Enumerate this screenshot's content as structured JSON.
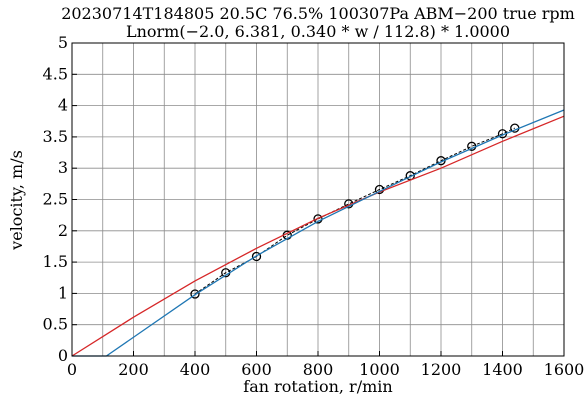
{
  "chart_data": {
    "type": "line",
    "title": "20230714T184805 20.5C 76.5% 100307Pa ABM−200 true rpm",
    "subtitle": "Lnorm(−2.0, 6.381, 0.340 * w / 112.8) * 1.0000",
    "xlabel": "fan rotation, r/min",
    "ylabel": "velocity, m/s",
    "xlim": [
      0,
      1600
    ],
    "ylim": [
      0,
      5
    ],
    "x_ticks": [
      0,
      200,
      400,
      600,
      800,
      1000,
      1200,
      1400,
      1600
    ],
    "x_tick_labels": [
      "0",
      "200",
      "400",
      "600",
      "800",
      "1000",
      "1200",
      "1400",
      "1600"
    ],
    "y_ticks": [
      0,
      0.5,
      1,
      1.5,
      2,
      2.5,
      3,
      3.5,
      4,
      4.5,
      5
    ],
    "y_tick_labels": [
      "0",
      "0.5",
      "1",
      "1.5",
      "2",
      "2.5",
      "3",
      "3.5",
      "4",
      "4.5",
      "5"
    ],
    "grid": true,
    "minor_x_step": 100,
    "series": [
      {
        "style": "markers-dashed",
        "color": "#000000",
        "x": [
          400,
          500,
          600,
          700,
          800,
          900,
          1000,
          1100,
          1200,
          1300,
          1400,
          1440
        ],
        "y": [
          0.99,
          1.33,
          1.59,
          1.93,
          2.19,
          2.43,
          2.66,
          2.88,
          3.12,
          3.35,
          3.55,
          3.64
        ]
      },
      {
        "style": "line",
        "color": "#d62728",
        "x": [
          0,
          200,
          400,
          600,
          800,
          1000,
          1200,
          1400,
          1600
        ],
        "y": [
          0.0,
          0.62,
          1.2,
          1.72,
          2.2,
          2.62,
          3.0,
          3.43,
          3.83
        ]
      },
      {
        "style": "line",
        "color": "#1f77b4",
        "x": [
          0,
          112,
          400,
          600,
          800,
          1000,
          1200,
          1400,
          1600
        ],
        "y": [
          0.0,
          0.0,
          0.98,
          1.6,
          2.15,
          2.63,
          3.1,
          3.53,
          3.93
        ]
      }
    ]
  }
}
